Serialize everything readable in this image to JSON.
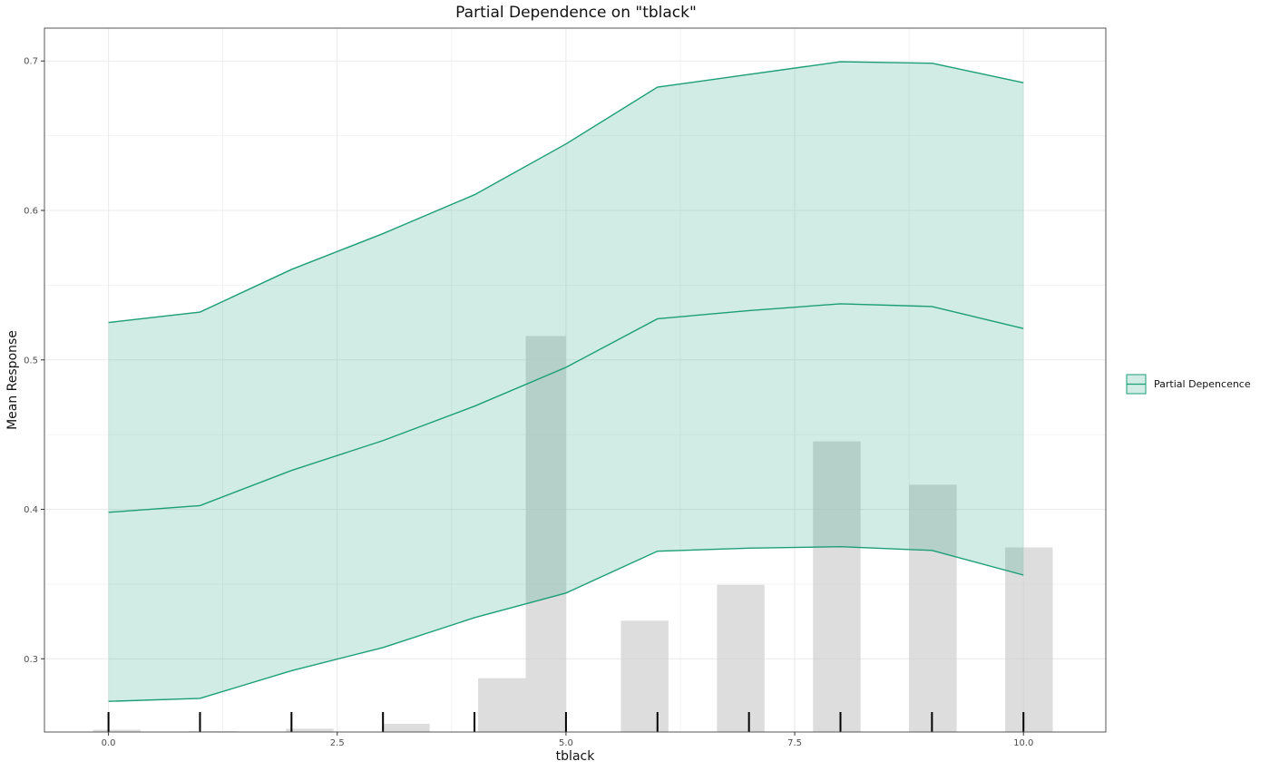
{
  "chart_data": {
    "type": "line",
    "title": "Partial Dependence on \"tblack\"",
    "xlabel": "tblack",
    "ylabel": "Mean Response",
    "xlim": [
      -0.7,
      10.9
    ],
    "ylim": [
      0.251,
      0.722
    ],
    "x_ticks": [
      0.0,
      2.5,
      5.0,
      7.5,
      10.0
    ],
    "x_tick_labels": [
      "0.0",
      "2.5",
      "5.0",
      "7.5",
      "10.0"
    ],
    "y_ticks": [
      0.3,
      0.4,
      0.5,
      0.6,
      0.7
    ],
    "y_tick_labels": [
      "0.3",
      "0.4",
      "0.5",
      "0.6",
      "0.7"
    ],
    "grid": true,
    "x": [
      0,
      1,
      2,
      3,
      4,
      5,
      6,
      7,
      8,
      9,
      10
    ],
    "series": [
      {
        "name": "Partial Depencence",
        "mean": [
          0.398,
          0.4025,
          0.426,
          0.446,
          0.469,
          0.495,
          0.5275,
          0.533,
          0.5375,
          0.5357,
          0.521
        ],
        "lower": [
          0.2715,
          0.2735,
          0.292,
          0.3075,
          0.3275,
          0.344,
          0.372,
          0.374,
          0.375,
          0.3725,
          0.356
        ],
        "upper": [
          0.525,
          0.532,
          0.5605,
          0.5845,
          0.6105,
          0.6445,
          0.6825,
          0.691,
          0.6995,
          0.6985,
          0.6855
        ]
      }
    ],
    "histogram": {
      "bins": [
        [
          -0.17,
          0.35,
          0.2525
        ],
        [
          0.88,
          1.4,
          0.2515
        ],
        [
          1.94,
          2.46,
          0.2532
        ],
        [
          2.99,
          3.51,
          0.2565
        ],
        [
          4.04,
          4.56,
          0.287
        ],
        [
          4.56,
          5.0,
          0.516
        ],
        [
          5.6,
          6.12,
          0.3255
        ],
        [
          6.65,
          7.17,
          0.3495
        ],
        [
          7.7,
          8.22,
          0.4455
        ],
        [
          8.75,
          9.27,
          0.4165
        ],
        [
          9.8,
          10.32,
          0.3745
        ]
      ]
    },
    "rug": [
      0,
      1,
      2,
      3,
      4,
      5,
      6,
      7,
      8,
      9,
      10
    ],
    "legend_position": "right",
    "colors": {
      "line": "#1b9e77",
      "ribbon": "#1b9e77",
      "histogram": "#cfcfcf",
      "rug": "#000000",
      "grid": "#ebebeb",
      "panel_border": "#555555"
    }
  }
}
